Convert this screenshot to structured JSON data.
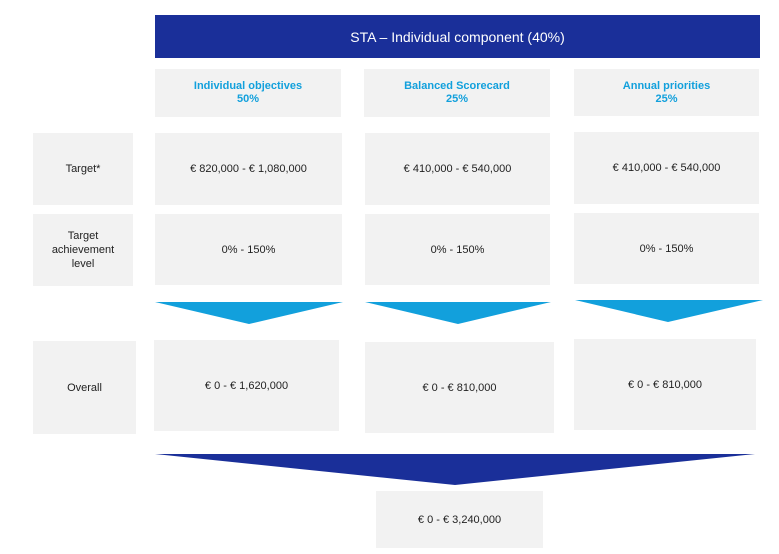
{
  "header": "STA – Individual component (40%)",
  "columns": [
    {
      "title": "Individual objectives",
      "weight": "50%",
      "target": "€ 820,000 - € 1,080,000",
      "achievement": "0% - 150%",
      "overall": "€ 0 - € 1,620,000"
    },
    {
      "title": "Balanced Scorecard",
      "weight": "25%",
      "target": "€ 410,000 - € 540,000",
      "achievement": "0% - 150%",
      "overall": "€ 0 - € 810,000"
    },
    {
      "title": "Annual priorities",
      "weight": "25%",
      "target": "€ 410,000 - € 540,000",
      "achievement": "0% - 150%",
      "overall": "€ 0 - € 810,000"
    }
  ],
  "row_labels": {
    "target": "Target*",
    "achievement": "Target\nachievement\nlevel",
    "overall": "Overall"
  },
  "total": "€ 0 - € 3,240,000",
  "colors": {
    "header_bg": "#1a2f99",
    "column_title": "#12a0dc",
    "small_arrow": "#12a0dc",
    "big_arrow": "#1a2f99",
    "box_bg": "#f2f2f2"
  }
}
